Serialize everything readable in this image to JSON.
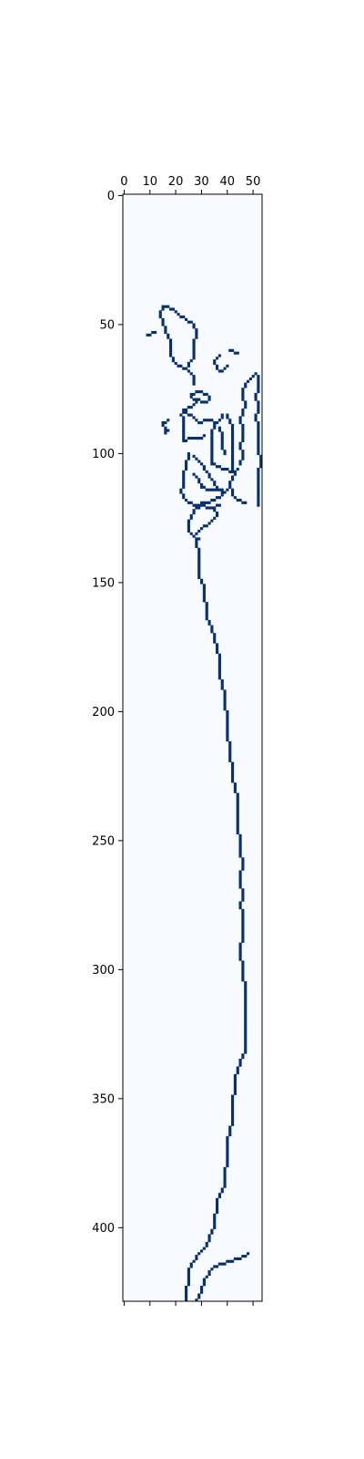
{
  "chart_data": {
    "type": "heatmap",
    "title": "",
    "xlabel": "",
    "ylabel": "",
    "xlim": [
      -0.5,
      53.5
    ],
    "ylim": [
      428.5,
      -0.5
    ],
    "grid": false,
    "x_axis_position": "top",
    "colormap": "Blues",
    "colors": {
      "background": "#f7fbff",
      "edge": "#08306b",
      "axis": "#000000"
    },
    "xticks": [
      0,
      10,
      20,
      30,
      40,
      50
    ],
    "yticks": [
      0,
      50,
      100,
      150,
      200,
      250,
      300,
      350,
      400
    ],
    "xtick_labels": [
      "0",
      "10",
      "20",
      "30",
      "40",
      "50"
    ],
    "ytick_labels": [
      "0",
      "50",
      "100",
      "150",
      "200",
      "250",
      "300",
      "350",
      "400"
    ],
    "polylines": [
      [
        [
          16,
          43
        ],
        [
          19,
          44
        ],
        [
          21,
          46
        ],
        [
          24,
          48
        ],
        [
          27,
          50
        ],
        [
          28,
          53
        ],
        [
          27,
          57
        ],
        [
          27,
          62
        ],
        [
          26,
          64
        ],
        [
          24,
          67
        ],
        [
          21,
          66
        ],
        [
          19,
          64
        ],
        [
          18,
          61
        ],
        [
          18,
          57
        ],
        [
          16,
          53
        ],
        [
          15,
          49
        ],
        [
          14,
          46
        ],
        [
          15,
          43
        ],
        [
          16,
          43
        ]
      ],
      [
        [
          9,
          54
        ],
        [
          12,
          53
        ]
      ],
      [
        [
          24,
          67
        ],
        [
          26,
          69
        ],
        [
          27,
          71
        ],
        [
          27,
          73
        ]
      ],
      [
        [
          26,
          77
        ],
        [
          29,
          76
        ],
        [
          32,
          77
        ],
        [
          33,
          78
        ],
        [
          32,
          80
        ],
        [
          28,
          79
        ],
        [
          26,
          78
        ]
      ],
      [
        [
          26,
          78
        ],
        [
          28,
          80
        ],
        [
          26,
          82
        ],
        [
          23,
          83
        ],
        [
          22,
          85
        ],
        [
          23,
          87
        ],
        [
          23,
          90
        ],
        [
          23,
          92
        ],
        [
          23,
          95
        ],
        [
          26,
          94
        ],
        [
          29,
          94
        ],
        [
          31,
          93
        ]
      ],
      [
        [
          24,
          84
        ],
        [
          27,
          86
        ],
        [
          29,
          88
        ],
        [
          32,
          87
        ],
        [
          34,
          87
        ],
        [
          36,
          88
        ],
        [
          38,
          86
        ],
        [
          38,
          85
        ]
      ],
      [
        [
          17,
          87
        ],
        [
          15,
          88
        ],
        [
          16,
          92
        ],
        [
          17,
          91
        ]
      ],
      [
        [
          36,
          88
        ],
        [
          34,
          91
        ],
        [
          34,
          95
        ],
        [
          34,
          100
        ],
        [
          34,
          104
        ],
        [
          37,
          105
        ],
        [
          39,
          106
        ],
        [
          42,
          107
        ],
        [
          42,
          103
        ],
        [
          42,
          98
        ],
        [
          42,
          95
        ],
        [
          42,
          90
        ],
        [
          41,
          88
        ],
        [
          40,
          86
        ],
        [
          40,
          85
        ]
      ],
      [
        [
          37,
          90
        ],
        [
          38,
          93
        ],
        [
          38,
          96
        ],
        [
          38,
          98
        ],
        [
          39,
          100
        ]
      ],
      [
        [
          25,
          100
        ],
        [
          24,
          104
        ],
        [
          23,
          108
        ],
        [
          23,
          112
        ],
        [
          22,
          115
        ],
        [
          24,
          118
        ],
        [
          27,
          120
        ],
        [
          32,
          119
        ],
        [
          36,
          117
        ],
        [
          38,
          116
        ],
        [
          40,
          114
        ],
        [
          41,
          112
        ]
      ],
      [
        [
          27,
          101
        ],
        [
          30,
          104
        ],
        [
          32,
          107
        ],
        [
          34,
          110
        ],
        [
          36,
          113
        ],
        [
          38,
          114
        ]
      ],
      [
        [
          27,
          108
        ],
        [
          29,
          110
        ],
        [
          30,
          113
        ],
        [
          33,
          114
        ],
        [
          37,
          114
        ],
        [
          38,
          116
        ]
      ],
      [
        [
          37,
          120
        ],
        [
          34,
          121
        ],
        [
          30,
          120
        ],
        [
          28,
          121
        ],
        [
          26,
          124
        ],
        [
          25,
          127
        ],
        [
          25,
          130
        ],
        [
          27,
          132
        ],
        [
          29,
          133
        ]
      ],
      [
        [
          35,
          121
        ],
        [
          36,
          124
        ],
        [
          33,
          127
        ],
        [
          30,
          129
        ],
        [
          28,
          131
        ]
      ],
      [
        [
          28,
          134
        ],
        [
          29,
          139
        ],
        [
          29,
          143
        ],
        [
          29,
          148
        ],
        [
          31,
          152
        ],
        [
          31,
          156
        ],
        [
          32,
          160
        ],
        [
          32,
          164
        ],
        [
          34,
          168
        ],
        [
          35,
          172
        ],
        [
          36,
          176
        ],
        [
          37,
          180
        ],
        [
          37,
          186
        ],
        [
          38,
          190
        ],
        [
          39,
          194
        ],
        [
          39,
          198
        ],
        [
          40,
          201
        ],
        [
          40,
          205
        ],
        [
          40,
          210
        ],
        [
          41,
          214
        ],
        [
          41,
          218
        ],
        [
          42,
          222
        ],
        [
          42,
          226
        ],
        [
          43,
          230
        ],
        [
          44,
          234
        ],
        [
          44,
          238
        ],
        [
          44,
          242
        ],
        [
          44,
          246
        ],
        [
          45,
          250
        ],
        [
          45,
          255
        ],
        [
          46,
          259
        ],
        [
          45,
          263
        ],
        [
          45,
          267
        ],
        [
          46,
          271
        ],
        [
          45,
          275
        ],
        [
          46,
          279
        ],
        [
          46,
          283
        ],
        [
          46,
          287
        ],
        [
          45,
          291
        ],
        [
          45,
          295
        ],
        [
          46,
          299
        ],
        [
          46,
          303
        ],
        [
          47,
          307
        ],
        [
          47,
          311
        ],
        [
          47,
          315
        ],
        [
          47,
          319
        ],
        [
          47,
          323
        ],
        [
          47,
          327
        ],
        [
          47,
          331
        ],
        [
          46,
          333
        ],
        [
          45,
          336
        ],
        [
          44,
          339
        ],
        [
          43,
          342
        ],
        [
          43,
          346
        ],
        [
          42,
          350
        ],
        [
          42,
          354
        ],
        [
          42,
          358
        ],
        [
          41,
          362
        ],
        [
          40,
          366
        ],
        [
          40,
          370
        ],
        [
          40,
          374
        ],
        [
          39,
          378
        ],
        [
          39,
          382
        ],
        [
          38,
          386
        ],
        [
          36,
          389
        ],
        [
          36,
          393
        ],
        [
          35,
          396
        ],
        [
          35,
          400
        ],
        [
          33,
          403
        ],
        [
          32,
          407
        ],
        [
          29,
          410
        ],
        [
          27,
          413
        ],
        [
          25,
          416
        ],
        [
          25,
          420
        ],
        [
          24,
          424
        ],
        [
          24,
          428
        ]
      ],
      [
        [
          28,
          428
        ],
        [
          30,
          424
        ],
        [
          31,
          420
        ],
        [
          34,
          416
        ],
        [
          37,
          414
        ],
        [
          41,
          413
        ],
        [
          44,
          412
        ],
        [
          47,
          411
        ],
        [
          48,
          410
        ]
      ],
      [
        [
          37,
          62
        ],
        [
          35,
          64
        ],
        [
          36,
          67
        ],
        [
          38,
          68
        ],
        [
          40,
          66
        ]
      ],
      [
        [
          41,
          60
        ],
        [
          44,
          61
        ]
      ],
      [
        [
          51,
          69
        ],
        [
          48,
          72
        ],
        [
          46,
          75
        ],
        [
          46,
          78
        ],
        [
          47,
          81
        ],
        [
          46,
          84
        ],
        [
          45,
          87
        ],
        [
          46,
          90
        ],
        [
          46,
          94
        ],
        [
          45,
          97
        ],
        [
          46,
          101
        ],
        [
          45,
          104
        ]
      ],
      [
        [
          52,
          70
        ],
        [
          52,
          74
        ],
        [
          51,
          78
        ],
        [
          52,
          82
        ],
        [
          51,
          86
        ],
        [
          52,
          90
        ],
        [
          52,
          94
        ],
        [
          52,
          98
        ],
        [
          53,
          103
        ],
        [
          52,
          107
        ],
        [
          52,
          111
        ],
        [
          52,
          116
        ],
        [
          52,
          120
        ]
      ],
      [
        [
          44,
          106
        ],
        [
          42,
          109
        ],
        [
          41,
          112
        ],
        [
          42,
          116
        ],
        [
          44,
          118
        ],
        [
          47,
          119
        ]
      ]
    ]
  }
}
